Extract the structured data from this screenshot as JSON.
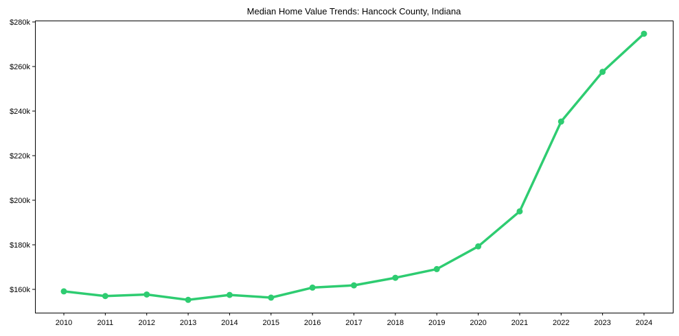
{
  "chart_data": {
    "type": "line",
    "title": "Median Home Value Trends: Hancock County, Indiana",
    "xlabel": "",
    "ylabel": "",
    "categories": [
      "2010",
      "2011",
      "2012",
      "2013",
      "2014",
      "2015",
      "2016",
      "2017",
      "2018",
      "2019",
      "2020",
      "2021",
      "2022",
      "2023",
      "2024"
    ],
    "series": [
      {
        "name": "Median Home Value",
        "color": "#2ecc71",
        "values": [
          159100,
          157000,
          157700,
          155300,
          157500,
          156300,
          160800,
          161800,
          165200,
          169100,
          179300,
          195000,
          235300,
          257600,
          274700
        ]
      }
    ],
    "yticks": [
      160000,
      180000,
      200000,
      220000,
      240000,
      260000,
      280000
    ],
    "ytick_labels": [
      "$160k",
      "$180k",
      "$200k",
      "$220k",
      "$240k",
      "$260k",
      "$280k"
    ],
    "ylim": [
      149600,
      280800
    ],
    "grid": false,
    "legend": null
  }
}
